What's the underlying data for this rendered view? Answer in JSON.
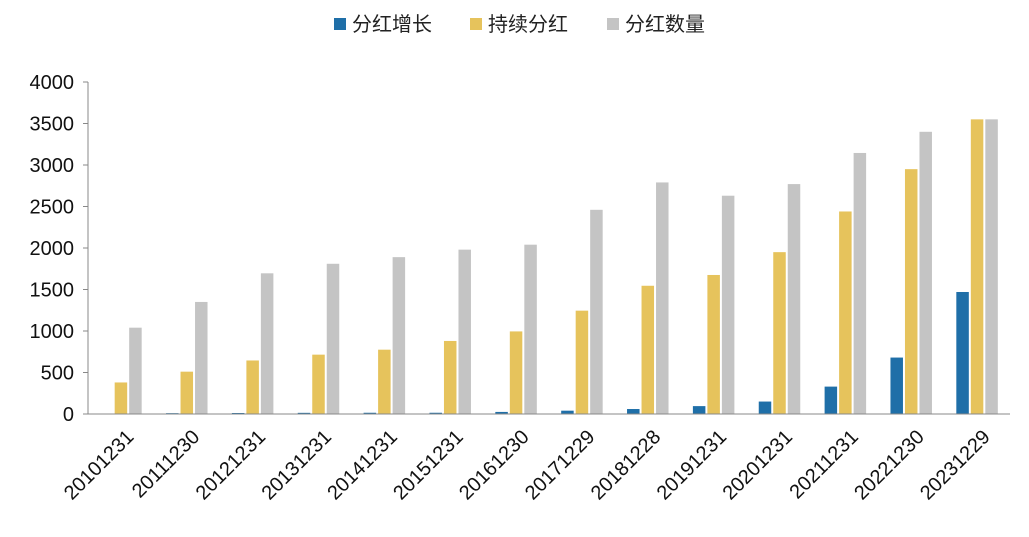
{
  "chart_data": {
    "type": "bar",
    "title": "",
    "xlabel": "",
    "ylabel": "",
    "ylim": [
      0,
      4000
    ],
    "yticks": [
      0,
      500,
      1000,
      1500,
      2000,
      2500,
      3000,
      3500,
      4000
    ],
    "grid": false,
    "legend_position": "top",
    "categories": [
      "20101231",
      "20111230",
      "20121231",
      "20131231",
      "20141231",
      "20151231",
      "20161230",
      "20171229",
      "20181228",
      "20191231",
      "20201231",
      "20211231",
      "20221230",
      "20231229"
    ],
    "series": [
      {
        "name": "分红增长",
        "color": "#1f6fa8",
        "values": [
          0,
          10,
          12,
          14,
          15,
          15,
          25,
          40,
          60,
          95,
          150,
          330,
          680,
          1470
        ]
      },
      {
        "name": "持续分红",
        "color": "#e6c35c",
        "values": [
          380,
          510,
          645,
          715,
          775,
          880,
          995,
          1245,
          1545,
          1675,
          1950,
          2440,
          2950,
          3550
        ]
      },
      {
        "name": "分红数量",
        "color": "#c4c4c4",
        "values": [
          1040,
          1350,
          1695,
          1810,
          1890,
          1980,
          2040,
          2460,
          2790,
          2630,
          2770,
          3145,
          3400,
          3550
        ]
      }
    ]
  }
}
